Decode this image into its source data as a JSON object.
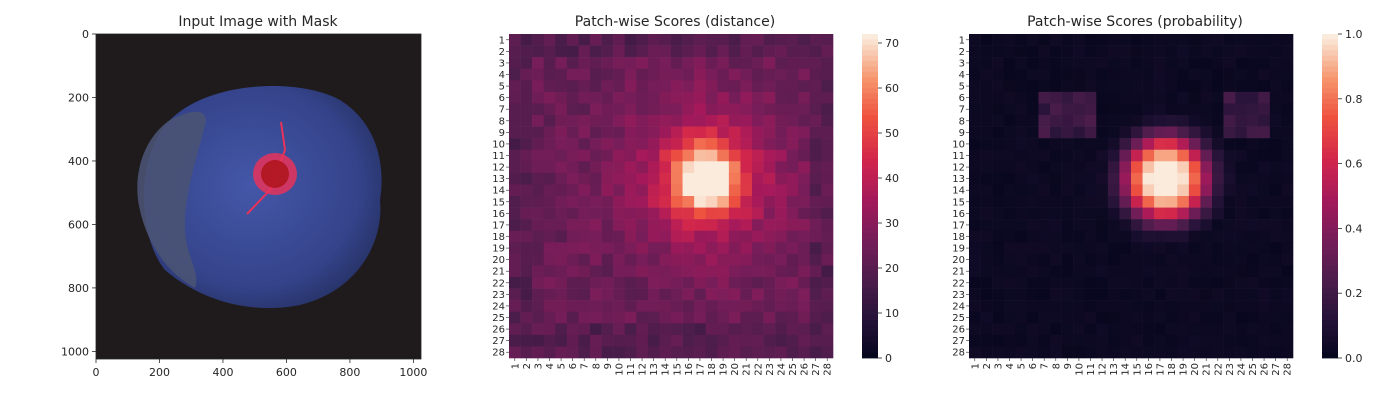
{
  "chart_data": [
    {
      "type": "image",
      "title": "Input Image with Mask",
      "xlim": [
        0,
        1024
      ],
      "ylim": [
        1024,
        0
      ],
      "xticks": [
        0,
        200,
        400,
        600,
        800,
        1000
      ],
      "yticks": [
        0,
        200,
        400,
        600,
        800,
        1000
      ],
      "object": {
        "description_color": "#3a4a8f",
        "background_color": "#1f1b1c",
        "center": [
          520,
          450
        ],
        "defect_mask_center": [
          565,
          440
        ],
        "mask_color": "#e8325a"
      }
    },
    {
      "type": "heatmap",
      "title": "Patch-wise Scores (distance)",
      "rows": 28,
      "cols": 28,
      "row_labels": [
        "1",
        "2",
        "3",
        "4",
        "5",
        "6",
        "7",
        "8",
        "9",
        "10",
        "11",
        "12",
        "13",
        "14",
        "15",
        "16",
        "17",
        "18",
        "19",
        "20",
        "21",
        "22",
        "23",
        "24",
        "25",
        "26",
        "27",
        "28"
      ],
      "col_labels": [
        "1",
        "2",
        "3",
        "4",
        "5",
        "6",
        "7",
        "8",
        "9",
        "10",
        "11",
        "12",
        "13",
        "14",
        "15",
        "16",
        "17",
        "18",
        "19",
        "20",
        "21",
        "22",
        "23",
        "24",
        "25",
        "26",
        "27",
        "28"
      ],
      "colorbar": {
        "min": 0,
        "max": 72,
        "ticks": [
          0,
          10,
          20,
          30,
          40,
          50,
          60,
          70
        ]
      },
      "hotspot": {
        "row": 13,
        "col": 17.5,
        "peak": 72
      },
      "baseline": 24
    },
    {
      "type": "heatmap",
      "title": "Patch-wise Scores (probability)",
      "rows": 28,
      "cols": 28,
      "row_labels": [
        "1",
        "2",
        "3",
        "4",
        "5",
        "6",
        "7",
        "8",
        "9",
        "10",
        "11",
        "12",
        "13",
        "14",
        "15",
        "16",
        "17",
        "18",
        "19",
        "20",
        "21",
        "22",
        "23",
        "24",
        "25",
        "26",
        "27",
        "28"
      ],
      "col_labels": [
        "1",
        "2",
        "3",
        "4",
        "5",
        "6",
        "7",
        "8",
        "9",
        "10",
        "11",
        "12",
        "13",
        "14",
        "15",
        "16",
        "17",
        "18",
        "19",
        "20",
        "21",
        "22",
        "23",
        "24",
        "25",
        "26",
        "27",
        "28"
      ],
      "colorbar": {
        "min": 0,
        "max": 1,
        "ticks": [
          "0.0",
          "0.2",
          "0.4",
          "0.6",
          "0.8",
          "1.0"
        ]
      },
      "hotspot": {
        "row": 13,
        "col": 17.5,
        "peak": 1.0
      },
      "baseline": 0.02
    }
  ]
}
